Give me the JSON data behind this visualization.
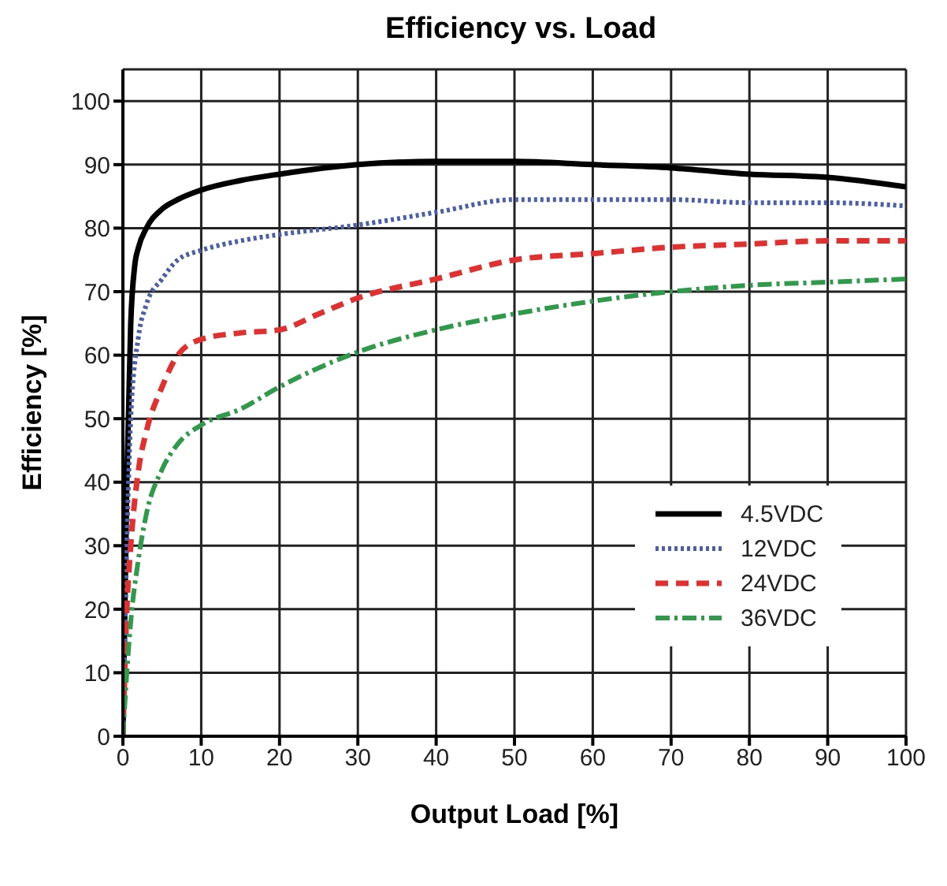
{
  "chart_data": {
    "type": "line",
    "title": "Efficiency vs. Load",
    "xlabel": "Output Load [%]",
    "ylabel": "Efficiency [%]",
    "xlim": [
      0,
      100
    ],
    "xticks": [
      0,
      10,
      20,
      30,
      40,
      50,
      60,
      70,
      80,
      90,
      100
    ],
    "ylim": [
      0,
      105
    ],
    "yticks": [
      0,
      10,
      20,
      30,
      40,
      50,
      60,
      70,
      80,
      90,
      100
    ],
    "grid": true,
    "legend": "bottom right",
    "marker": "none",
    "series": [
      {
        "name": "4.5VDC",
        "color": "#000000",
        "line_style": "solid",
        "x": [
          0,
          0.5,
          1,
          1.5,
          2,
          3,
          5,
          7,
          10,
          15,
          20,
          30,
          40,
          50,
          60,
          70,
          80,
          90,
          100
        ],
        "values": [
          0,
          40,
          65,
          74,
          77,
          80,
          83,
          84.5,
          86,
          87.5,
          88.5,
          90,
          90.5,
          90.5,
          90,
          89.5,
          88.5,
          88,
          86.5
        ]
      },
      {
        "name": "12VDC",
        "color": "#4a5fa8",
        "line_style": "dotted",
        "x": [
          0,
          0.5,
          1,
          2,
          3,
          5,
          7,
          10,
          15,
          20,
          30,
          40,
          50,
          60,
          70,
          80,
          90,
          100
        ],
        "values": [
          0,
          30,
          50,
          63,
          68,
          72,
          75,
          76.5,
          78,
          79,
          80.5,
          82.5,
          84.5,
          84.5,
          84.5,
          84,
          84,
          83.5
        ]
      },
      {
        "name": "24VDC",
        "color": "#e03030",
        "line_style": "dashed",
        "x": [
          0,
          0.5,
          1,
          2,
          3,
          5,
          7,
          10,
          15,
          20,
          25,
          30,
          40,
          50,
          60,
          70,
          80,
          90,
          100
        ],
        "values": [
          0,
          20,
          30,
          42,
          48,
          55,
          60,
          62.5,
          63.5,
          64,
          66.5,
          69,
          72,
          75,
          76,
          77,
          77.5,
          78,
          78
        ]
      },
      {
        "name": "36VDC",
        "color": "#2e9a4a",
        "line_style": "dashdot",
        "x": [
          0,
          0.5,
          1,
          2,
          3,
          5,
          7,
          10,
          15,
          20,
          30,
          40,
          50,
          60,
          70,
          80,
          90,
          100
        ],
        "values": [
          0,
          10,
          18,
          28,
          35,
          42,
          46,
          49,
          51.5,
          55,
          60.5,
          64,
          66.5,
          68.5,
          70,
          71,
          71.5,
          72
        ]
      }
    ]
  }
}
